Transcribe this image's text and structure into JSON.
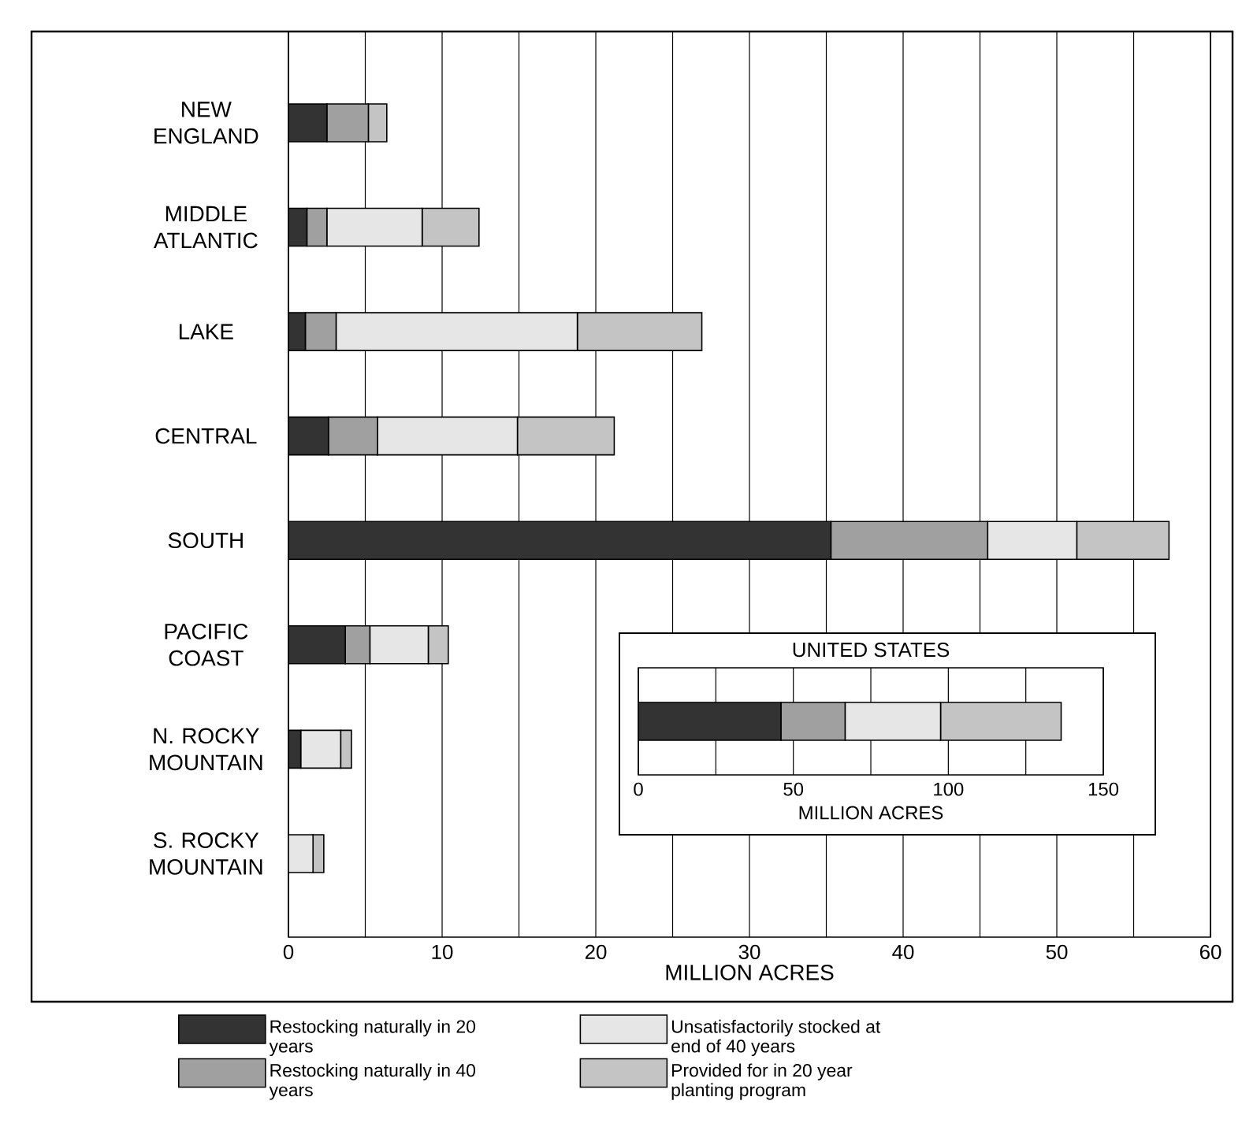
{
  "chart_data": [
    {
      "type": "bar",
      "orientation": "horizontal",
      "stacked": true,
      "xlabel": "MILLION ACRES",
      "categories": [
        "NEW ENGLAND",
        "MIDDLE ATLANTIC",
        "LAKE",
        "CENTRAL",
        "SOUTH",
        "PACIFIC COAST",
        "N. ROCKY MOUNTAIN",
        "S. ROCKY MOUNTAIN"
      ],
      "series": [
        {
          "name": "Restocking naturally in 20 years",
          "color": "#333333",
          "values": [
            2.5,
            1.2,
            1.1,
            2.6,
            35.3,
            3.7,
            0.8,
            0
          ]
        },
        {
          "name": "Restocking naturally in 40 years",
          "color": "#a0a0a0",
          "values": [
            2.7,
            1.3,
            2.0,
            3.2,
            10.2,
            1.6,
            0,
            0
          ]
        },
        {
          "name": "Unsatisfactorily stocked at end of 40 years",
          "color": "#e6e6e6",
          "values": [
            0,
            6.2,
            15.7,
            9.1,
            5.8,
            3.8,
            2.6,
            1.6
          ]
        },
        {
          "name": "Provided for in 20 year planting program",
          "color": "#c4c4c4",
          "values": [
            1.2,
            3.7,
            8.1,
            6.3,
            6.0,
            1.3,
            0.7,
            0.7
          ]
        }
      ],
      "xlim": [
        0,
        60
      ],
      "xticks": [
        0,
        {
          "value": 5,
          "label": null
        },
        10,
        {
          "value": 15,
          "label": null
        },
        20,
        {
          "value": 25,
          "label": null
        },
        30,
        {
          "value": 35,
          "label": null
        },
        40,
        {
          "value": 45,
          "label": null
        },
        50,
        {
          "value": 55,
          "label": null
        },
        60
      ],
      "grid": "x",
      "legend": "bottom"
    },
    {
      "type": "bar",
      "orientation": "horizontal",
      "stacked": true,
      "title": "UNITED STATES",
      "xlabel": "MILLION ACRES",
      "categories": [
        null
      ],
      "series": [
        {
          "color": "#333333",
          "values": [
            46
          ]
        },
        {
          "color": "#a0a0a0",
          "values": [
            20.7
          ]
        },
        {
          "color": "#e6e6e6",
          "values": [
            30.8
          ]
        },
        {
          "color": "#c4c4c4",
          "values": [
            38.9
          ]
        }
      ],
      "xlim": [
        0,
        150
      ],
      "xticks": [
        0,
        {
          "value": 25,
          "label": null
        },
        50,
        {
          "value": 75,
          "label": null
        },
        100,
        {
          "value": 125,
          "label": null
        },
        150
      ],
      "grid": "x",
      "tick_labels": "x"
    }
  ]
}
